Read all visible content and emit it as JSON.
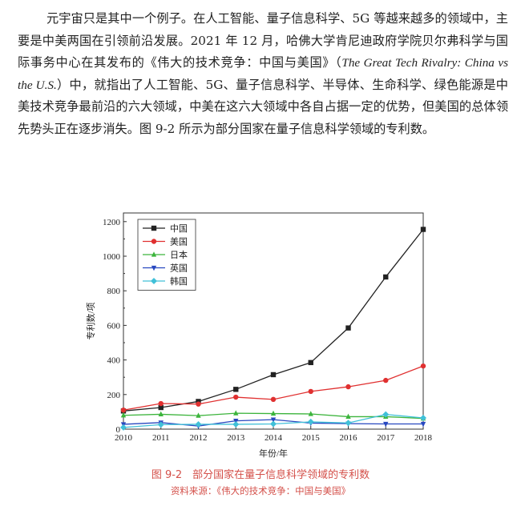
{
  "paragraph": {
    "part1": "元宇宙只是其中一个例子。在人工智能、量子信息科学、5G 等越来越多的领域中，主要是中美两国在引领前沿发展。2021 年 12 月，哈佛大学肯尼迪政府学院贝尔弗科学与国际事务中心在其发布的《伟大的技术竞争：中国与美国》（",
    "english_title": "The Great Tech Rivalry: China vs the U.S.",
    "part2": "）中，就指出了人工智能、5G、量子信息科学、半导体、生命科学、绿色能源是中美技术竞争最前沿的六大领域，中美在这六大领域中各自占据一定的优势，但美国的总体领先势头正在逐步消失。图 9-2 所示为部分国家在量子信息科学领域的专利数。"
  },
  "figure": {
    "caption": "图 9-2　部分国家在量子信息科学领域的专利数",
    "source": "资料来源：《伟大的技术竞争：中国与美国》"
  },
  "chart_data": {
    "type": "line",
    "title": "",
    "xlabel": "年份/年",
    "ylabel": "专利数/项",
    "x": [
      2010,
      2011,
      2012,
      2013,
      2014,
      2015,
      2016,
      2017,
      2018
    ],
    "xlim": [
      2010,
      2018
    ],
    "ylim": [
      0,
      1250
    ],
    "yticks": [
      0,
      200,
      400,
      600,
      800,
      1000,
      1200
    ],
    "legend_position": "top-left",
    "grid": false,
    "series": [
      {
        "name": "中国",
        "color": "#222222",
        "marker": "square",
        "values": [
          105,
          125,
          160,
          230,
          315,
          385,
          585,
          880,
          1155
        ]
      },
      {
        "name": "美国",
        "color": "#e03030",
        "marker": "circle",
        "values": [
          110,
          148,
          145,
          185,
          172,
          218,
          245,
          282,
          365
        ]
      },
      {
        "name": "日本",
        "color": "#3cb43c",
        "marker": "triangle-up",
        "values": [
          80,
          86,
          78,
          92,
          90,
          88,
          72,
          72,
          62
        ]
      },
      {
        "name": "英国",
        "color": "#2848c0",
        "marker": "triangle-down",
        "values": [
          28,
          38,
          18,
          48,
          55,
          35,
          32,
          30,
          30
        ]
      },
      {
        "name": "韩国",
        "color": "#40c0d8",
        "marker": "diamond",
        "values": [
          10,
          26,
          28,
          28,
          30,
          42,
          36,
          85,
          65
        ]
      }
    ]
  }
}
